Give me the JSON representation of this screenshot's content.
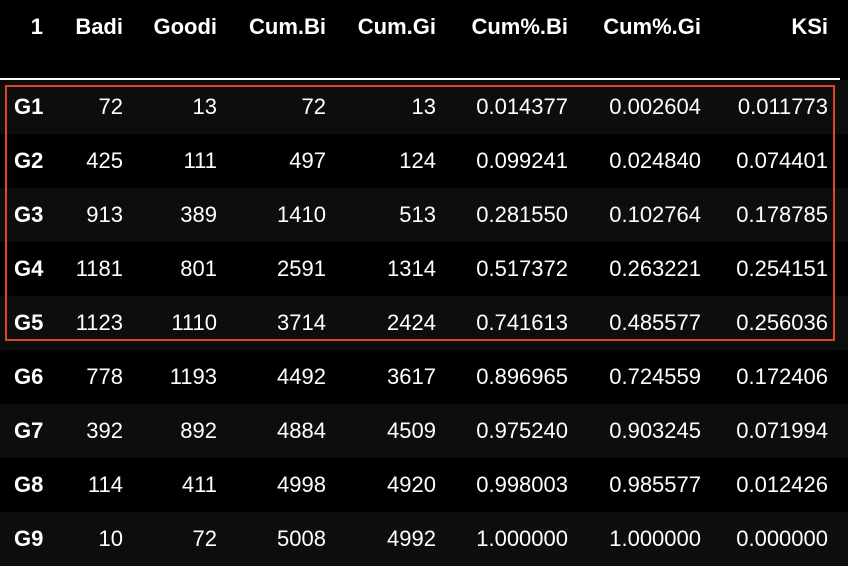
{
  "table": {
    "columns": [
      "1",
      "Badi",
      "Goodi",
      "Cum.Bi",
      "Cum.Gi",
      "Cum%.Bi",
      "Cum%.Gi",
      "KSi"
    ],
    "rows": [
      [
        "G1",
        "72",
        "13",
        "72",
        "13",
        "0.014377",
        "0.002604",
        "0.011773"
      ],
      [
        "G2",
        "425",
        "111",
        "497",
        "124",
        "0.099241",
        "0.024840",
        "0.074401"
      ],
      [
        "G3",
        "913",
        "389",
        "1410",
        "513",
        "0.281550",
        "0.102764",
        "0.178785"
      ],
      [
        "G4",
        "1181",
        "801",
        "2591",
        "1314",
        "0.517372",
        "0.263221",
        "0.254151"
      ],
      [
        "G5",
        "1123",
        "1110",
        "3714",
        "2424",
        "0.741613",
        "0.485577",
        "0.256036"
      ],
      [
        "G6",
        "778",
        "1193",
        "4492",
        "3617",
        "0.896965",
        "0.724559",
        "0.172406"
      ],
      [
        "G7",
        "392",
        "892",
        "4884",
        "4509",
        "0.975240",
        "0.903245",
        "0.071994"
      ],
      [
        "G8",
        "114",
        "411",
        "4998",
        "4920",
        "0.998003",
        "0.985577",
        "0.012426"
      ],
      [
        "G9",
        "10",
        "72",
        "5008",
        "4992",
        "1.000000",
        "1.000000",
        "0.000000"
      ]
    ],
    "highlighted_rows": [
      "G1",
      "G2",
      "G3",
      "G4",
      "G5"
    ]
  },
  "colors": {
    "background": "#000000",
    "text": "#ffffff",
    "stripe": "#0d0d0d",
    "highlight_border": "#d9472b"
  }
}
